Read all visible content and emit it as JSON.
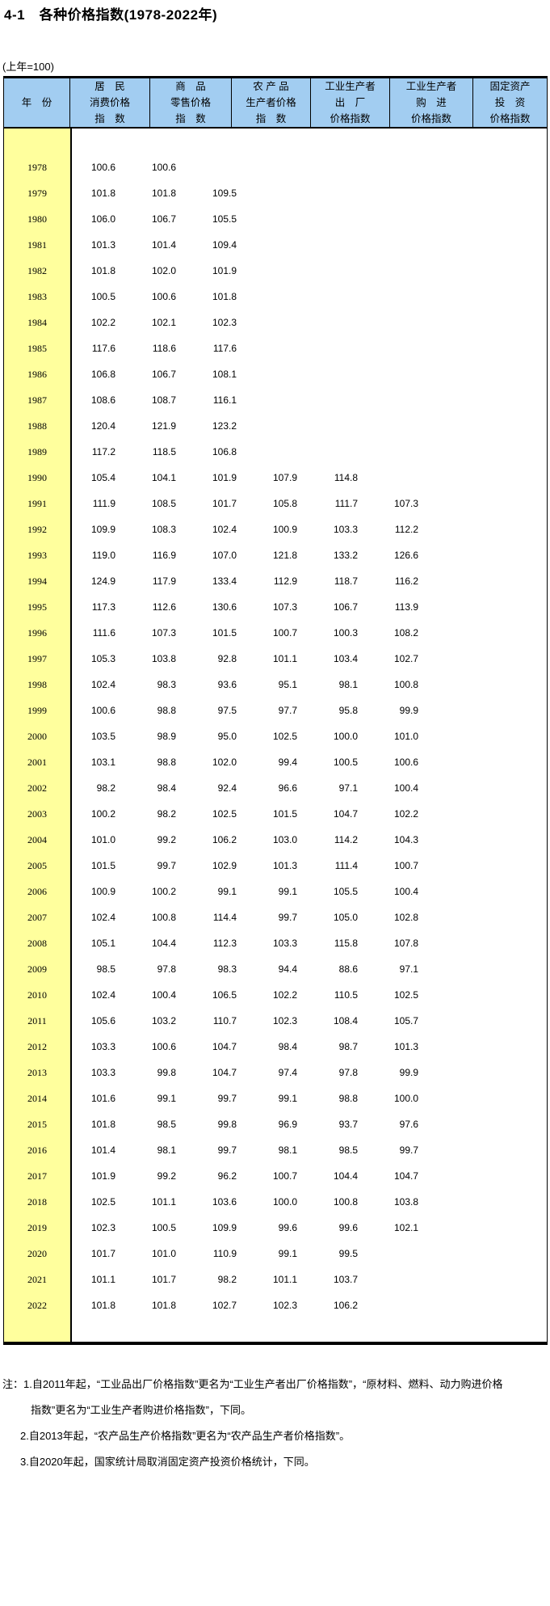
{
  "title": "4-1　各种价格指数(1978-2022年)",
  "unit_note": "(上年=100)",
  "colors": {
    "header_bg": "#a2cdf1",
    "year_col_bg": "#ffff9d",
    "border": "#000000",
    "text": "#000000"
  },
  "table": {
    "columns": [
      {
        "lines": [
          "年　份"
        ]
      },
      {
        "lines": [
          "居　民",
          "消费价格",
          "指　数"
        ]
      },
      {
        "lines": [
          "商　品",
          "零售价格",
          "指　数"
        ]
      },
      {
        "lines": [
          "农 产 品",
          "生产者价格",
          "指　数"
        ]
      },
      {
        "lines": [
          "工业生产者",
          "出　厂",
          "价格指数"
        ]
      },
      {
        "lines": [
          "工业生产者",
          "购　进",
          "价格指数"
        ]
      },
      {
        "lines": [
          "固定资产",
          "投　资",
          "价格指数"
        ]
      }
    ],
    "rows": [
      {
        "year": "1978",
        "values": [
          "100.6",
          "100.6",
          "",
          "",
          "",
          ""
        ]
      },
      {
        "year": "1979",
        "values": [
          "101.8",
          "101.8",
          "109.5",
          "",
          "",
          ""
        ]
      },
      {
        "year": "1980",
        "values": [
          "106.0",
          "106.7",
          "105.5",
          "",
          "",
          ""
        ]
      },
      {
        "year": "1981",
        "values": [
          "101.3",
          "101.4",
          "109.4",
          "",
          "",
          ""
        ]
      },
      {
        "year": "1982",
        "values": [
          "101.8",
          "102.0",
          "101.9",
          "",
          "",
          ""
        ]
      },
      {
        "year": "1983",
        "values": [
          "100.5",
          "100.6",
          "101.8",
          "",
          "",
          ""
        ]
      },
      {
        "year": "1984",
        "values": [
          "102.2",
          "102.1",
          "102.3",
          "",
          "",
          ""
        ]
      },
      {
        "year": "1985",
        "values": [
          "117.6",
          "118.6",
          "117.6",
          "",
          "",
          ""
        ]
      },
      {
        "year": "1986",
        "values": [
          "106.8",
          "106.7",
          "108.1",
          "",
          "",
          ""
        ]
      },
      {
        "year": "1987",
        "values": [
          "108.6",
          "108.7",
          "116.1",
          "",
          "",
          ""
        ]
      },
      {
        "year": "1988",
        "values": [
          "120.4",
          "121.9",
          "123.2",
          "",
          "",
          ""
        ]
      },
      {
        "year": "1989",
        "values": [
          "117.2",
          "118.5",
          "106.8",
          "",
          "",
          ""
        ]
      },
      {
        "year": "1990",
        "values": [
          "105.4",
          "104.1",
          "101.9",
          "107.9",
          "114.8",
          ""
        ]
      },
      {
        "year": "1991",
        "values": [
          "111.9",
          "108.5",
          "101.7",
          "105.8",
          "111.7",
          "107.3"
        ]
      },
      {
        "year": "1992",
        "values": [
          "109.9",
          "108.3",
          "102.4",
          "100.9",
          "103.3",
          "112.2"
        ]
      },
      {
        "year": "1993",
        "values": [
          "119.0",
          "116.9",
          "107.0",
          "121.8",
          "133.2",
          "126.6"
        ]
      },
      {
        "year": "1994",
        "values": [
          "124.9",
          "117.9",
          "133.4",
          "112.9",
          "118.7",
          "116.2"
        ]
      },
      {
        "year": "1995",
        "values": [
          "117.3",
          "112.6",
          "130.6",
          "107.3",
          "106.7",
          "113.9"
        ]
      },
      {
        "year": "1996",
        "values": [
          "111.6",
          "107.3",
          "101.5",
          "100.7",
          "100.3",
          "108.2"
        ]
      },
      {
        "year": "1997",
        "values": [
          "105.3",
          "103.8",
          "92.8",
          "101.1",
          "103.4",
          "102.7"
        ]
      },
      {
        "year": "1998",
        "values": [
          "102.4",
          "98.3",
          "93.6",
          "95.1",
          "98.1",
          "100.8"
        ]
      },
      {
        "year": "1999",
        "values": [
          "100.6",
          "98.8",
          "97.5",
          "97.7",
          "95.8",
          "99.9"
        ]
      },
      {
        "year": "2000",
        "values": [
          "103.5",
          "98.9",
          "95.0",
          "102.5",
          "100.0",
          "101.0"
        ]
      },
      {
        "year": "2001",
        "values": [
          "103.1",
          "98.8",
          "102.0",
          "99.4",
          "100.5",
          "100.6"
        ]
      },
      {
        "year": "2002",
        "values": [
          "98.2",
          "98.4",
          "92.4",
          "96.6",
          "97.1",
          "100.4"
        ]
      },
      {
        "year": "2003",
        "values": [
          "100.2",
          "98.2",
          "102.5",
          "101.5",
          "104.7",
          "102.2"
        ]
      },
      {
        "year": "2004",
        "values": [
          "101.0",
          "99.2",
          "106.2",
          "103.0",
          "114.2",
          "104.3"
        ]
      },
      {
        "year": "2005",
        "values": [
          "101.5",
          "99.7",
          "102.9",
          "101.3",
          "111.4",
          "100.7"
        ]
      },
      {
        "year": "2006",
        "values": [
          "100.9",
          "100.2",
          "99.1",
          "99.1",
          "105.5",
          "100.4"
        ]
      },
      {
        "year": "2007",
        "values": [
          "102.4",
          "100.8",
          "114.4",
          "99.7",
          "105.0",
          "102.8"
        ]
      },
      {
        "year": "2008",
        "values": [
          "105.1",
          "104.4",
          "112.3",
          "103.3",
          "115.8",
          "107.8"
        ]
      },
      {
        "year": "2009",
        "values": [
          "98.5",
          "97.8",
          "98.3",
          "94.4",
          "88.6",
          "97.1"
        ]
      },
      {
        "year": "2010",
        "values": [
          "102.4",
          "100.4",
          "106.5",
          "102.2",
          "110.5",
          "102.5"
        ]
      },
      {
        "year": "2011",
        "values": [
          "105.6",
          "103.2",
          "110.7",
          "102.3",
          "108.4",
          "105.7"
        ]
      },
      {
        "year": "2012",
        "values": [
          "103.3",
          "100.6",
          "104.7",
          "98.4",
          "98.7",
          "101.3"
        ]
      },
      {
        "year": "2013",
        "values": [
          "103.3",
          "99.8",
          "104.7",
          "97.4",
          "97.8",
          "99.9"
        ]
      },
      {
        "year": "2014",
        "values": [
          "101.6",
          "99.1",
          "99.7",
          "99.1",
          "98.8",
          "100.0"
        ]
      },
      {
        "year": "2015",
        "values": [
          "101.8",
          "98.5",
          "99.8",
          "96.9",
          "93.7",
          "97.6"
        ]
      },
      {
        "year": "2016",
        "values": [
          "101.4",
          "98.1",
          "99.7",
          "98.1",
          "98.5",
          "99.7"
        ]
      },
      {
        "year": "2017",
        "values": [
          "101.9",
          "99.2",
          "96.2",
          "100.7",
          "104.4",
          "104.7"
        ]
      },
      {
        "year": "2018",
        "values": [
          "102.5",
          "101.1",
          "103.6",
          "100.0",
          "100.8",
          "103.8"
        ]
      },
      {
        "year": "2019",
        "values": [
          "102.3",
          "100.5",
          "109.9",
          "99.6",
          "99.6",
          "102.1"
        ]
      },
      {
        "year": "2020",
        "values": [
          "101.7",
          "101.0",
          "110.9",
          "99.1",
          "99.5",
          ""
        ]
      },
      {
        "year": "2021",
        "values": [
          "101.1",
          "101.7",
          "98.2",
          "101.1",
          "103.7",
          ""
        ]
      },
      {
        "year": "2022",
        "values": [
          "101.8",
          "101.8",
          "102.7",
          "102.3",
          "106.2",
          ""
        ]
      }
    ]
  },
  "notes": [
    "注：1.自2011年起，“工业品出厂价格指数”更名为“工业生产者出厂价格指数”，“原材料、燃料、动力购进价格",
    "指数”更名为“工业生产者购进价格指数”，下同。",
    "2.自2013年起，“农产品生产价格指数”更名为“农产品生产者价格指数”。",
    "3.自2020年起，国家统计局取消固定资产投资价格统计，下同。"
  ]
}
